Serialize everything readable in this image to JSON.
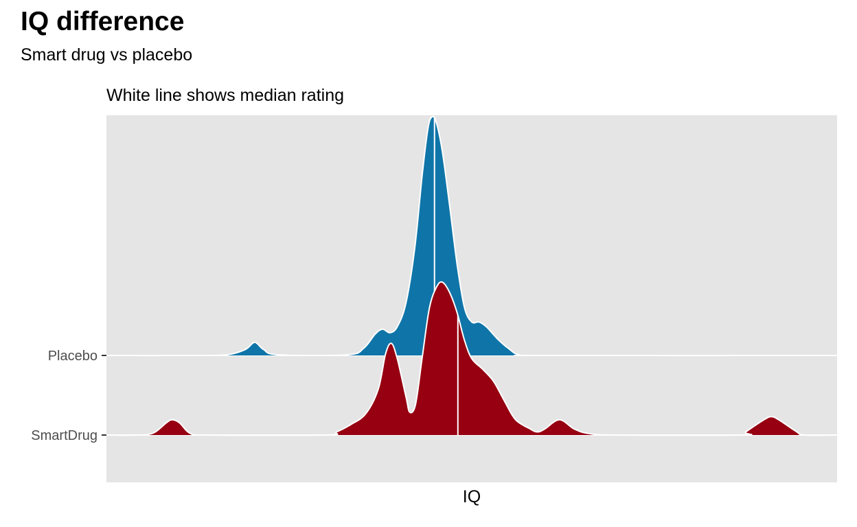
{
  "title": "IQ difference",
  "subtitle": "Smart drug vs placebo",
  "chart_data": {
    "type": "ridgeline",
    "panel_title": "White line shows median rating",
    "xlabel": "IQ",
    "ylabel": "",
    "x_tick_labels_shown": false,
    "panel_background": "#e5e5e5",
    "grid": true,
    "legend": "none",
    "median_line_color": "#ffffff",
    "xlim": [
      0,
      1
    ],
    "categories": [
      "Placebo",
      "SmartDrug"
    ],
    "series": [
      {
        "name": "Placebo",
        "color": "#0f75a8",
        "median_x": 0.449,
        "height_scale": 1.0,
        "density": [
          [
            0.0,
            0
          ],
          [
            0.12,
            0
          ],
          [
            0.165,
            0.003
          ],
          [
            0.19,
            0.025
          ],
          [
            0.203,
            0.055
          ],
          [
            0.215,
            0.025
          ],
          [
            0.235,
            0.003
          ],
          [
            0.33,
            0.003
          ],
          [
            0.352,
            0.03
          ],
          [
            0.368,
            0.09
          ],
          [
            0.378,
            0.11
          ],
          [
            0.388,
            0.095
          ],
          [
            0.398,
            0.12
          ],
          [
            0.41,
            0.22
          ],
          [
            0.422,
            0.45
          ],
          [
            0.432,
            0.75
          ],
          [
            0.44,
            0.95
          ],
          [
            0.446,
            1.0
          ],
          [
            0.452,
            0.97
          ],
          [
            0.46,
            0.85
          ],
          [
            0.47,
            0.62
          ],
          [
            0.48,
            0.38
          ],
          [
            0.49,
            0.2
          ],
          [
            0.5,
            0.14
          ],
          [
            0.51,
            0.14
          ],
          [
            0.52,
            0.12
          ],
          [
            0.535,
            0.07
          ],
          [
            0.55,
            0.03
          ],
          [
            0.565,
            0.003
          ],
          [
            0.6,
            0
          ],
          [
            1.0,
            0
          ]
        ]
      },
      {
        "name": "SmartDrug",
        "color": "#960011",
        "median_x": 0.481,
        "height_scale": 0.64,
        "density": [
          [
            0.0,
            0
          ],
          [
            0.045,
            0
          ],
          [
            0.065,
            0.015
          ],
          [
            0.082,
            0.08
          ],
          [
            0.09,
            0.1
          ],
          [
            0.1,
            0.08
          ],
          [
            0.115,
            0.01
          ],
          [
            0.14,
            0
          ],
          [
            0.3,
            0
          ],
          [
            0.315,
            0.02
          ],
          [
            0.335,
            0.07
          ],
          [
            0.355,
            0.14
          ],
          [
            0.372,
            0.3
          ],
          [
            0.382,
            0.53
          ],
          [
            0.39,
            0.6
          ],
          [
            0.398,
            0.5
          ],
          [
            0.41,
            0.25
          ],
          [
            0.415,
            0.15
          ],
          [
            0.423,
            0.2
          ],
          [
            0.432,
            0.5
          ],
          [
            0.442,
            0.83
          ],
          [
            0.452,
            0.97
          ],
          [
            0.46,
            1.0
          ],
          [
            0.47,
            0.93
          ],
          [
            0.48,
            0.8
          ],
          [
            0.49,
            0.62
          ],
          [
            0.5,
            0.5
          ],
          [
            0.515,
            0.43
          ],
          [
            0.53,
            0.35
          ],
          [
            0.545,
            0.22
          ],
          [
            0.56,
            0.1
          ],
          [
            0.58,
            0.04
          ],
          [
            0.59,
            0.02
          ],
          [
            0.6,
            0.04
          ],
          [
            0.62,
            0.1
          ],
          [
            0.64,
            0.04
          ],
          [
            0.66,
            0.01
          ],
          [
            0.7,
            0
          ],
          [
            0.87,
            0
          ],
          [
            0.875,
            0.02
          ],
          [
            0.9,
            0.1
          ],
          [
            0.91,
            0.12
          ],
          [
            0.92,
            0.1
          ],
          [
            0.945,
            0.02
          ],
          [
            0.955,
            0
          ],
          [
            1.0,
            0
          ]
        ]
      }
    ]
  }
}
